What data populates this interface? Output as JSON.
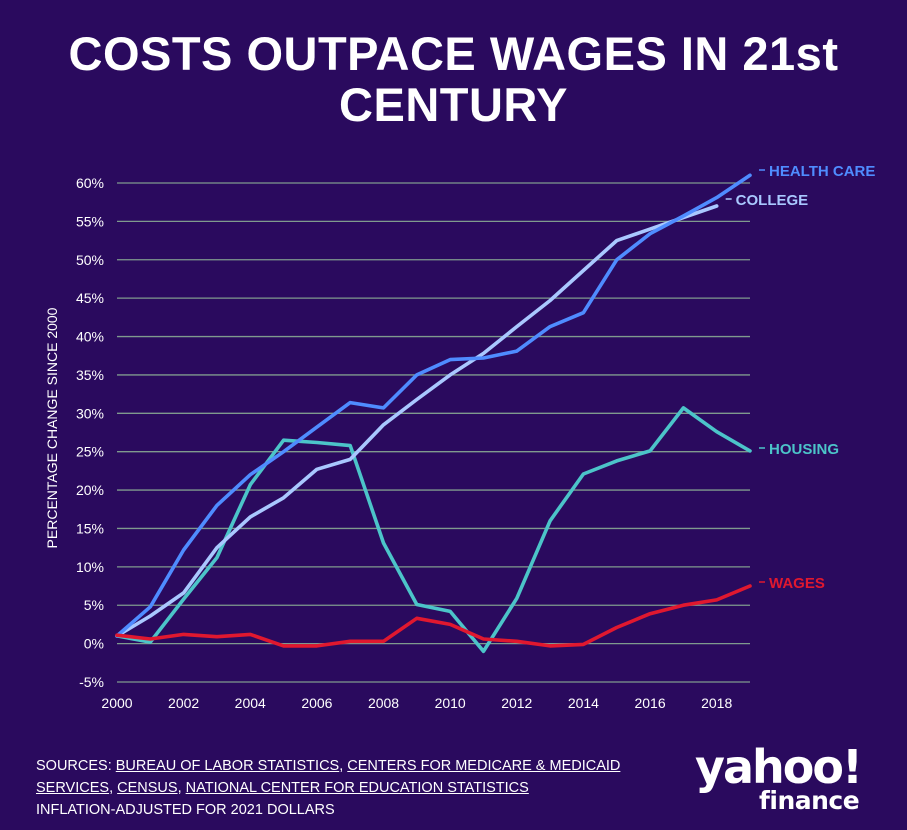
{
  "colors": {
    "background": "#2a0a5e",
    "grid": "#7f9a8e",
    "health_care": "#4f8cff",
    "college": "#a9c8ff",
    "housing": "#4cc4c9",
    "wages": "#e0182f"
  },
  "chart_data": {
    "type": "line",
    "title": "COSTS OUTPACE WAGES IN 21st CENTURY",
    "ylabel": "PERCENTAGE CHANGE SINCE 2000",
    "xlabel": "",
    "ylim": [
      -5,
      60
    ],
    "yticks": [
      "-5%",
      "0%",
      "5%",
      "10%",
      "15%",
      "20%",
      "25%",
      "30%",
      "35%",
      "40%",
      "45%",
      "50%",
      "55%",
      "60%"
    ],
    "xticks": [
      "2000",
      "2002",
      "2004",
      "2006",
      "2008",
      "2010",
      "2012",
      "2014",
      "2016",
      "2018"
    ],
    "grid": true,
    "legend": "line-end labels",
    "x": [
      2000,
      2001,
      2002,
      2003,
      2004,
      2005,
      2006,
      2007,
      2008,
      2009,
      2010,
      2011,
      2012,
      2013,
      2014,
      2015,
      2016,
      2017,
      2018,
      2019
    ],
    "series": [
      {
        "name": "HEALTH CARE",
        "color_key": "health_care",
        "values": [
          1.0,
          4.8,
          12.2,
          18.0,
          22.0,
          25.0,
          28.2,
          31.4,
          30.7,
          35.0,
          37.0,
          37.2,
          38.1,
          41.3,
          43.1,
          50.0,
          53.4,
          55.7,
          58.1,
          61.0
        ]
      },
      {
        "name": "COLLEGE",
        "color_key": "college",
        "values": [
          1.0,
          3.6,
          6.6,
          12.5,
          16.5,
          19.0,
          22.7,
          24.0,
          28.5,
          31.8,
          35.0,
          37.8,
          41.3,
          44.7,
          48.6,
          52.5,
          54.0,
          55.5,
          57.0,
          null
        ]
      },
      {
        "name": "HOUSING",
        "color_key": "housing",
        "values": [
          1.0,
          0.2,
          5.8,
          11.2,
          20.7,
          26.5,
          26.2,
          25.8,
          13.1,
          5.1,
          4.2,
          -1.0,
          5.9,
          16.0,
          22.1,
          23.8,
          25.1,
          30.7,
          27.6,
          25.1
        ]
      },
      {
        "name": "WAGES",
        "color_key": "wages",
        "values": [
          1.1,
          0.6,
          1.2,
          0.9,
          1.2,
          -0.3,
          -0.3,
          0.3,
          0.3,
          3.3,
          2.5,
          0.6,
          0.3,
          -0.3,
          -0.1,
          2.1,
          3.9,
          5.0,
          5.7,
          7.5
        ]
      }
    ]
  },
  "footer": {
    "sources_prefix": "SOURCES: ",
    "sources": [
      "BUREAU OF LABOR STATISTICS",
      "CENTERS FOR MEDICARE & MEDICAID SERVICES",
      "CENSUS",
      "NATIONAL CENTER FOR EDUCATION STATISTICS"
    ],
    "note": "INFLATION-ADJUSTED FOR 2021 DOLLARS"
  },
  "logo": {
    "yahoo": "yahoo!",
    "finance": "finance"
  }
}
